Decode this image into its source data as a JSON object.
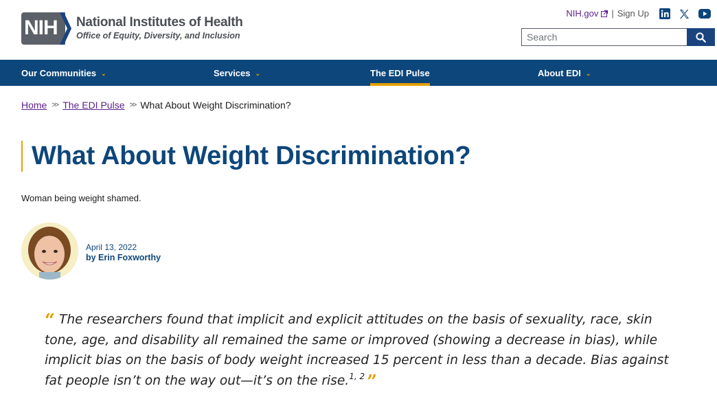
{
  "header": {
    "logo_mark": "NIH",
    "logo_title": "National Institutes of Health",
    "logo_subtitle": "Office of Equity, Diversity, and Inclusion",
    "utility": {
      "nih_link": "NIH.gov",
      "separator": "|",
      "signup": "Sign Up"
    },
    "social_icons": [
      "linkedin-icon",
      "x-icon",
      "youtube-icon"
    ],
    "search": {
      "placeholder": "Search"
    }
  },
  "nav": {
    "items": [
      {
        "label": "Our Communities",
        "dropdown": true
      },
      {
        "label": "Services",
        "dropdown": true
      },
      {
        "label": "The EDI Pulse",
        "dropdown": false,
        "active": true
      },
      {
        "label": "About EDI",
        "dropdown": true
      }
    ],
    "chevron": "⌄"
  },
  "breadcrumb": {
    "items": [
      "Home",
      "The EDI Pulse",
      "What About Weight Discrimination?"
    ],
    "separator": "»"
  },
  "article": {
    "title": "What About Weight Discrimination?",
    "caption": "Woman being weight shamed.",
    "date": "April 13, 2022",
    "author": "by Erin Foxworthy",
    "quote": "The researchers found that implicit and explicit attitudes on the basis of sexuality, race, skin tone, age, and disability all remained the same or improved (showing a decrease in bias), while implicit bias on the basis of body weight increased 15 percent in less than a decade. Bias against fat people isn’t on the way out—it’s on the rise.",
    "footnotes": "1, 2"
  },
  "colors": {
    "brand_blue": "#0d467b",
    "accent_gold": "#e5a000",
    "link_purple": "#5a1f8a"
  }
}
